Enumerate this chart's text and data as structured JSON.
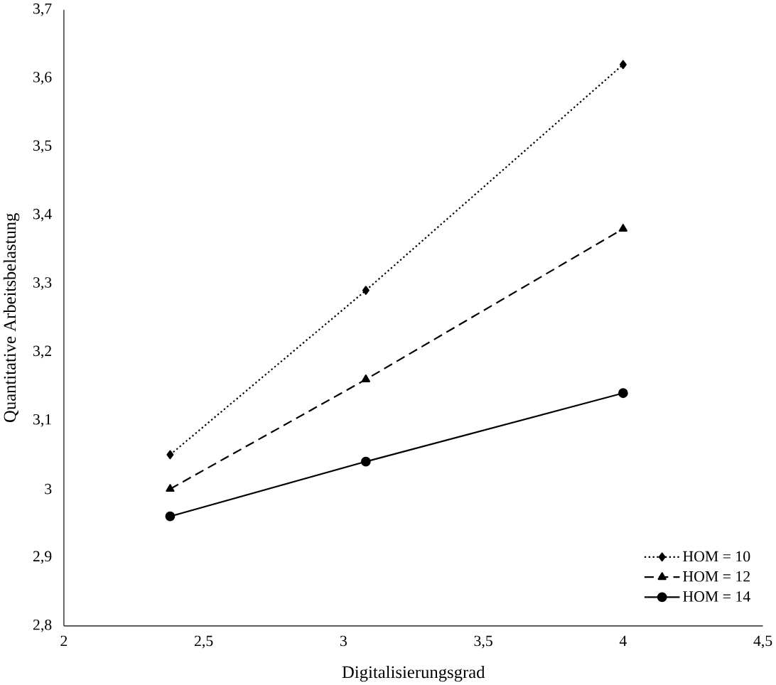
{
  "chart_data": {
    "type": "line",
    "xlabel": "Digitalisierungsgrad",
    "ylabel": "Quantitative Arbeitsbelastung",
    "x": [
      2.38,
      3.08,
      4.0
    ],
    "series": [
      {
        "name": "HOM = 10",
        "color": "#000000",
        "values": [
          3.05,
          3.29,
          3.62
        ],
        "marker": "diamond",
        "line_style": "dotted"
      },
      {
        "name": "HOM = 12",
        "color": "#000000",
        "values": [
          3.0,
          3.16,
          3.38
        ],
        "marker": "triangle",
        "line_style": "dashed"
      },
      {
        "name": "HOM = 14",
        "color": "#000000",
        "values": [
          2.96,
          3.04,
          3.14
        ],
        "marker": "circle",
        "line_style": "solid"
      }
    ],
    "xlim": [
      2,
      4.5
    ],
    "xticks": [
      2,
      {
        "value": 2.5,
        "label": "2,5"
      },
      3,
      {
        "value": 3.5,
        "label": "3,5"
      },
      4,
      {
        "value": 4.5,
        "label": "4,5"
      }
    ],
    "ylim": [
      2.8,
      3.7
    ],
    "yticks": [
      {
        "value": 2.8,
        "label": "2,8"
      },
      {
        "value": 2.9,
        "label": "2,9"
      },
      3,
      {
        "value": 3.1,
        "label": "3,1"
      },
      {
        "value": 3.2,
        "label": "3,2"
      },
      {
        "value": 3.3,
        "label": "3,3"
      },
      {
        "value": 3.4,
        "label": "3,4"
      },
      {
        "value": 3.5,
        "label": "3,5"
      },
      {
        "value": 3.6,
        "label": "3,6"
      },
      {
        "value": 3.7,
        "label": "3,7"
      }
    ],
    "grid": false,
    "legend": "bottom right"
  }
}
